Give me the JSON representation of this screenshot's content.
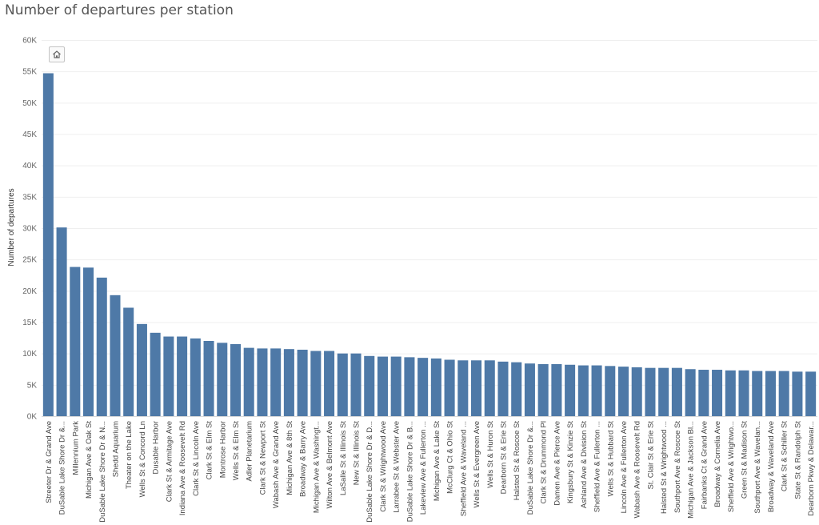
{
  "chart_data": {
    "type": "bar",
    "title": "Number of departures per station",
    "xlabel": "",
    "ylabel": "Number of departures",
    "ylim": [
      0,
      60000
    ],
    "yticks": [
      0,
      5000,
      10000,
      15000,
      20000,
      25000,
      30000,
      35000,
      40000,
      45000,
      50000,
      55000,
      60000
    ],
    "ytick_labels": [
      "0K",
      "5K",
      "10K",
      "15K",
      "20K",
      "25K",
      "30K",
      "35K",
      "40K",
      "45K",
      "50K",
      "55K",
      "60K"
    ],
    "grid": true,
    "bar_color": "#4e79a7",
    "categories": [
      "Streeter Dr & Grand Ave",
      "DuSable Lake Shore Dr &...",
      "Millennium Park",
      "Michigan Ave & Oak St",
      "DuSable Lake Shore Dr & N...",
      "Shedd Aquarium",
      "Theater on the Lake",
      "Wells St & Concord Ln",
      "Dusable Harbor",
      "Clark St & Armitage Ave",
      "Indiana Ave & Roosevelt Rd",
      "Clark St & Lincoln Ave",
      "Clark St & Elm St",
      "Montrose Harbor",
      "Wells St & Elm St",
      "Adler Planetarium",
      "Clark St & Newport St",
      "Wabash Ave & Grand Ave",
      "Michigan Ave & 8th St",
      "Broadway & Barry Ave",
      "Michigan Ave & Washingt...",
      "Wilton Ave & Belmont Ave",
      "LaSalle St & Illinois St",
      "New St & Illinois St",
      "DuSable Lake Shore Dr & D...",
      "Clark St & Wrightwood Ave",
      "Larrabee St & Webster Ave",
      "DuSable Lake Shore Dr & B...",
      "Lakeview Ave & Fullerton ...",
      "Michigan Ave & Lake St",
      "McClurg Ct & Ohio St",
      "Sheffield Ave & Waveland ...",
      "Wells St & Evergreen Ave",
      "Wells St & Huron St",
      "Dearborn St & Erie St",
      "Halsted St & Roscoe St",
      "DuSable Lake Shore Dr &...",
      "Clark St & Drummond Pl",
      "Damen Ave & Pierce Ave",
      "Kingsbury St & Kinzie St",
      "Ashland Ave & Division St",
      "Sheffield Ave & Fullerton ...",
      "Wells St & Hubbard St",
      "Lincoln Ave & Fullerton Ave",
      "Wabash Ave & Roosevelt Rd",
      "St. Clair St & Erie St",
      "Halsted St & Wrightwood ...",
      "Southport Ave & Roscoe St",
      "Michigan Ave & Jackson Bl...",
      "Fairbanks Ct & Grand Ave",
      "Broadway & Cornelia Ave",
      "Sheffield Ave & Wrightwo...",
      "Green St & Madison St",
      "Southport Ave & Wavelan...",
      "Broadway & Waveland Ave",
      "Clark St & Schiller St",
      "State St & Randolph St",
      "Dearborn Pkwy & Delawar..."
    ],
    "values": [
      54700,
      30100,
      23800,
      23700,
      22100,
      19300,
      17300,
      14700,
      13300,
      12700,
      12700,
      12400,
      12000,
      11700,
      11500,
      10900,
      10800,
      10800,
      10700,
      10600,
      10400,
      10400,
      10000,
      10000,
      9600,
      9500,
      9500,
      9400,
      9300,
      9200,
      9000,
      8900,
      8900,
      8900,
      8700,
      8600,
      8400,
      8300,
      8300,
      8200,
      8100,
      8100,
      8000,
      7900,
      7800,
      7700,
      7700,
      7700,
      7500,
      7400,
      7400,
      7300,
      7300,
      7200,
      7200,
      7200,
      7100,
      7100
    ]
  },
  "toolbar": {
    "home_icon": "home-icon"
  }
}
